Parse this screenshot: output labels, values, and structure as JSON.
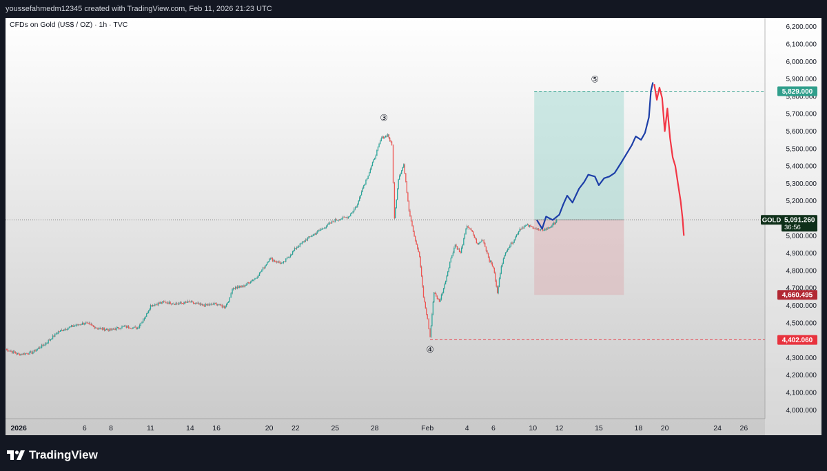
{
  "header": {
    "attribution": "youssefahmedm12345 created with TradingView.com, Feb 11, 2026 21:23 UTC"
  },
  "symbol_title": "CFDs on Gold (US$ / OZ) · 1h · TVC",
  "footer": {
    "brand": "TradingView"
  },
  "chart_data": {
    "type": "line",
    "instrument": "CFDs on Gold (US$ / OZ)",
    "timeframe": "1h",
    "source": "TVC",
    "ylim": [
      3950,
      6250
    ],
    "y_ticks": [
      "4,000.000",
      "4,100.000",
      "4,200.000",
      "4,300.000",
      "4,400.000",
      "4,500.000",
      "4,600.000",
      "4,700.000",
      "4,800.000",
      "4,900.000",
      "5,000.000",
      "5,100.000",
      "5,200.000",
      "5,300.000",
      "5,400.000",
      "5,500.000",
      "5,600.000",
      "5,700.000",
      "5,800.000",
      "5,900.000",
      "6,000.000",
      "6,100.000",
      "6,200.000"
    ],
    "y_tick_values": [
      4000,
      4100,
      4200,
      4300,
      4400,
      4500,
      4600,
      4700,
      4800,
      4900,
      5000,
      5100,
      5200,
      5300,
      5400,
      5500,
      5600,
      5700,
      5800,
      5900,
      6000,
      6100,
      6200
    ],
    "x_ticks": [
      {
        "label": "2026",
        "day": 0,
        "bold": true
      },
      {
        "label": "6",
        "day": 5
      },
      {
        "label": "8",
        "day": 7
      },
      {
        "label": "11",
        "day": 10
      },
      {
        "label": "14",
        "day": 13
      },
      {
        "label": "16",
        "day": 15
      },
      {
        "label": "20",
        "day": 19
      },
      {
        "label": "22",
        "day": 21
      },
      {
        "label": "25",
        "day": 24
      },
      {
        "label": "28",
        "day": 27
      },
      {
        "label": "Feb",
        "day": 31
      },
      {
        "label": "4",
        "day": 34
      },
      {
        "label": "6",
        "day": 36
      },
      {
        "label": "10",
        "day": 39
      },
      {
        "label": "12",
        "day": 41
      },
      {
        "label": "15",
        "day": 44
      },
      {
        "label": "18",
        "day": 47
      },
      {
        "label": "20",
        "day": 49
      },
      {
        "label": "24",
        "day": 53
      },
      {
        "label": "26",
        "day": 55
      }
    ],
    "x_day_range": [
      -1,
      56.6
    ],
    "price_series": [
      [
        -1,
        4350
      ],
      [
        0,
        4320
      ],
      [
        1,
        4330
      ],
      [
        2,
        4380
      ],
      [
        3,
        4450
      ],
      [
        4,
        4480
      ],
      [
        5,
        4500
      ],
      [
        6,
        4470
      ],
      [
        7,
        4460
      ],
      [
        8,
        4480
      ],
      [
        9,
        4470
      ],
      [
        9.7,
        4550
      ],
      [
        10,
        4600
      ],
      [
        11,
        4620
      ],
      [
        12,
        4610
      ],
      [
        13,
        4620
      ],
      [
        14,
        4600
      ],
      [
        15,
        4610
      ],
      [
        15.6,
        4590
      ],
      [
        16,
        4640
      ],
      [
        16.2,
        4700
      ],
      [
        17,
        4710
      ],
      [
        18,
        4760
      ],
      [
        18.7,
        4830
      ],
      [
        19,
        4870
      ],
      [
        20,
        4840
      ],
      [
        20.7,
        4900
      ],
      [
        21,
        4930
      ],
      [
        22,
        4990
      ],
      [
        23,
        5040
      ],
      [
        24,
        5090
      ],
      [
        25,
        5110
      ],
      [
        25.7,
        5180
      ],
      [
        26,
        5260
      ],
      [
        26.5,
        5350
      ],
      [
        27,
        5450
      ],
      [
        27.5,
        5560
      ],
      [
        28,
        5580
      ],
      [
        28.3,
        5520
      ],
      [
        28.5,
        5100
      ],
      [
        28.8,
        5330
      ],
      [
        29.2,
        5410
      ],
      [
        29.6,
        5150
      ],
      [
        30,
        5000
      ],
      [
        30.4,
        4880
      ],
      [
        30.7,
        4650
      ],
      [
        31,
        4520
      ],
      [
        31.2,
        4420
      ],
      [
        31.5,
        4680
      ],
      [
        31.9,
        4620
      ],
      [
        32.3,
        4720
      ],
      [
        32.7,
        4850
      ],
      [
        33.1,
        4950
      ],
      [
        33.5,
        4900
      ],
      [
        34,
        5060
      ],
      [
        34.4,
        5020
      ],
      [
        34.8,
        4950
      ],
      [
        35.2,
        4980
      ],
      [
        35.7,
        4860
      ],
      [
        36,
        4820
      ],
      [
        36.3,
        4670
      ],
      [
        36.6,
        4830
      ],
      [
        37,
        4920
      ],
      [
        37.5,
        4970
      ],
      [
        38,
        5040
      ],
      [
        38.5,
        5060
      ],
      [
        39,
        5050
      ],
      [
        39.5,
        5030
      ],
      [
        40,
        5040
      ],
      [
        40.5,
        5060
      ],
      [
        40.8,
        5090
      ]
    ],
    "forecast_path": [
      [
        39.3,
        5090
      ],
      [
        39.7,
        5040
      ],
      [
        40,
        5110
      ],
      [
        40.5,
        5090
      ],
      [
        41.0,
        5120
      ],
      [
        41.3,
        5180
      ],
      [
        41.6,
        5230
      ],
      [
        42.0,
        5190
      ],
      [
        42.5,
        5270
      ],
      [
        42.9,
        5310
      ],
      [
        43.2,
        5350
      ],
      [
        43.7,
        5340
      ],
      [
        44.0,
        5290
      ],
      [
        44.4,
        5330
      ],
      [
        44.8,
        5340
      ],
      [
        45.2,
        5360
      ],
      [
        45.7,
        5420
      ],
      [
        46.1,
        5470
      ],
      [
        46.5,
        5520
      ],
      [
        46.8,
        5570
      ],
      [
        47.2,
        5550
      ],
      [
        47.5,
        5590
      ],
      [
        47.8,
        5680
      ],
      [
        47.95,
        5830
      ],
      [
        48.1,
        5880
      ]
    ],
    "decline_path": [
      [
        48.2,
        5870
      ],
      [
        48.4,
        5780
      ],
      [
        48.6,
        5850
      ],
      [
        48.8,
        5790
      ],
      [
        49.0,
        5600
      ],
      [
        49.2,
        5730
      ],
      [
        49.4,
        5560
      ],
      [
        49.6,
        5450
      ],
      [
        49.8,
        5400
      ],
      [
        50.0,
        5300
      ],
      [
        50.2,
        5200
      ],
      [
        50.35,
        5100
      ],
      [
        50.45,
        5000
      ]
    ],
    "position": {
      "type": "long",
      "entry": 5091.26,
      "target": 5829.0,
      "stop": 4660.495,
      "x_start": 39.1,
      "x_end": 45.9
    },
    "horizontal_levels": [
      {
        "value": 5829.0,
        "label": "5,829.000",
        "color": "#2f9e8b",
        "dashed": true,
        "x_from": 39.1
      },
      {
        "value": 4402.06,
        "label": "4,402.060",
        "color": "#e8323d",
        "dashed": true,
        "x_from": 31.2
      },
      {
        "value": 4660.495,
        "label": "4,660.495",
        "color": "#b22833",
        "dashed": false,
        "x_from": null
      }
    ],
    "current_price": {
      "symbol": "GOLD",
      "value": "5,091.260",
      "countdown": "36:56",
      "numeric": 5091.26
    },
    "wave_labels": [
      {
        "label": "③",
        "day": 27.7,
        "price": 5660
      },
      {
        "label": "④",
        "day": 31.2,
        "price": 4330
      },
      {
        "label": "⑤",
        "day": 43.7,
        "price": 5880
      }
    ],
    "colors": {
      "bull": "#26a69a",
      "bear": "#ef5350",
      "forecast": "#1d3fa8",
      "decline": "#f23645",
      "target_zone": "rgba(153,214,206,0.45)",
      "stop_zone": "rgba(220,170,175,0.45)"
    }
  }
}
